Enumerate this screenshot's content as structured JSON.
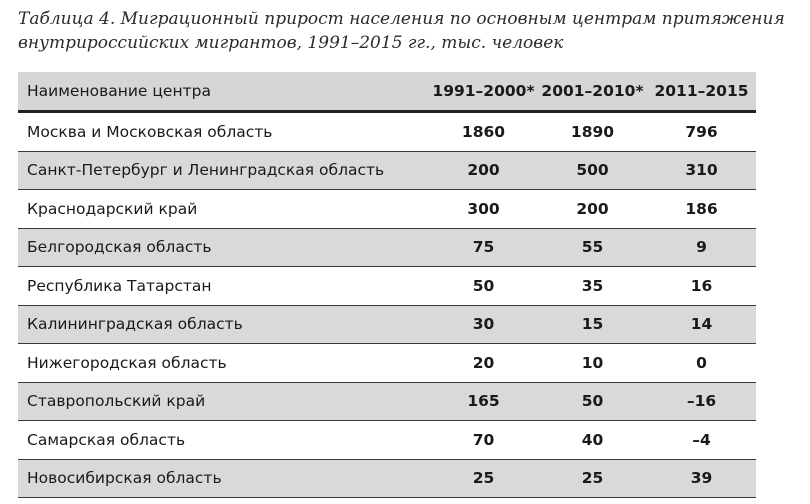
{
  "caption": {
    "line1": "Таблица 4. Миграционный прирост населения по основным центрам притяжения",
    "line2": "внутрироссийских мигрантов, 1991–2015 гг., тыс. человек"
  },
  "table": {
    "headers": [
      "Наименование центра",
      "1991–2000*",
      "2001–2010*",
      "2011–2015"
    ],
    "rows": [
      [
        "Москва и Московская область",
        "1860",
        "1890",
        "796"
      ],
      [
        "Санкт-Петербург и Ленинградская область",
        "200",
        "500",
        "310"
      ],
      [
        "Краснодарский край",
        "300",
        "200",
        "186"
      ],
      [
        "Белгородская область",
        "75",
        "55",
        "9"
      ],
      [
        "Республика Татарстан",
        "50",
        "35",
        "16"
      ],
      [
        "Калининградская область",
        "30",
        "15",
        "14"
      ],
      [
        "Нижегородская область",
        "20",
        "10",
        "0"
      ],
      [
        "Ставропольский край",
        "165",
        "50",
        "–16"
      ],
      [
        "Самарская область",
        "70",
        "40",
        "–4"
      ],
      [
        "Новосибирская область",
        "25",
        "25",
        "39"
      ]
    ]
  },
  "colors": {
    "header_bg": "#d6d6d6",
    "row_shade": "#d9d9d9",
    "row_plain": "#ffffff",
    "rule": "#222222"
  }
}
